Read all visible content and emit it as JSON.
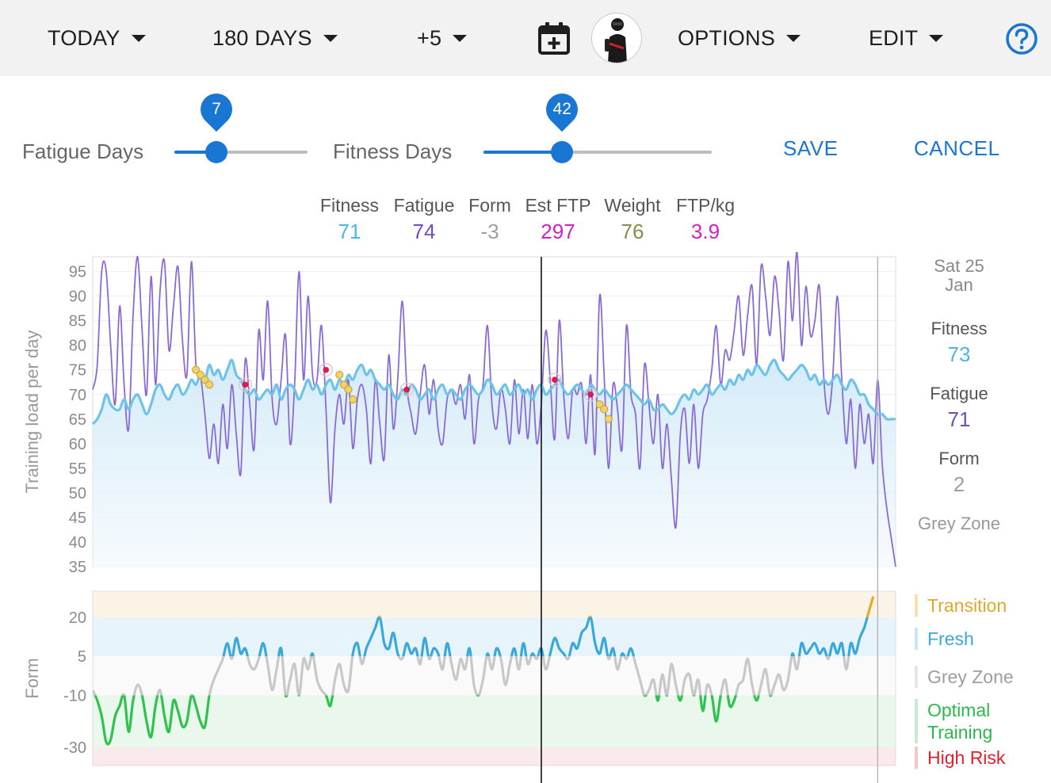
{
  "toolbar": {
    "period": "TODAY",
    "range": "180 DAYS",
    "offset": "+5",
    "calendar_icon": "calendar-add-icon",
    "options": "OPTIONS",
    "edit": "EDIT",
    "help_icon": "help-circle-icon"
  },
  "sliders": {
    "fatigue": {
      "label": "Fatigue Days",
      "value": 7,
      "value_text": "7",
      "min": 1,
      "max": 20
    },
    "fitness": {
      "label": "Fitness Days",
      "value": 42,
      "value_text": "42",
      "min": 1,
      "max": 120
    }
  },
  "actions": {
    "save": "SAVE",
    "cancel": "CANCEL"
  },
  "summary": [
    {
      "label": "Fitness",
      "value": "71",
      "color": "#4db6e6"
    },
    {
      "label": "Fatigue",
      "value": "74",
      "color": "#6f4cc3"
    },
    {
      "label": "Form",
      "value": "-3",
      "color": "#9e9e9e"
    },
    {
      "label": "Est FTP",
      "value": "297",
      "color": "#d021c7"
    },
    {
      "label": "Weight",
      "value": "76",
      "color": "#8a8a4a"
    },
    {
      "label": "FTP/kg",
      "value": "3.9",
      "color": "#d021c7"
    }
  ],
  "side": {
    "date_line1": "Sat 25",
    "date_line2": "Jan",
    "fitness_label": "Fitness",
    "fitness_value": "73",
    "fatigue_label": "Fatigue",
    "fatigue_value": "71",
    "form_label": "Form",
    "form_value": "2",
    "zone_label": "Grey Zone"
  },
  "zones": [
    {
      "label": "Transition",
      "color": "#e0a82e",
      "bar": "#f7dfb0"
    },
    {
      "label": "Fresh",
      "color": "#3aa8dc",
      "bar": "#c8e6f6"
    },
    {
      "label": "Grey Zone",
      "color": "#9e9e9e",
      "bar": "#e6e6e6"
    },
    {
      "label": "Optimal\nTraining",
      "color": "#2db84d",
      "bar": "#c8eccf"
    },
    {
      "label": "High Risk",
      "color": "#e0202a",
      "bar": "#f6c6c8"
    }
  ],
  "chart_data": {
    "type": "line",
    "days": 180,
    "load_chart": {
      "ylabel": "Training load per day",
      "yticks": [
        35,
        40,
        45,
        50,
        55,
        60,
        65,
        70,
        75,
        80,
        85,
        90,
        95
      ],
      "ylim": [
        35,
        98
      ],
      "series": [
        {
          "name": "Fitness",
          "color": "#6ec3e8",
          "fill": true,
          "values": [
            64,
            65,
            67,
            70,
            68,
            67,
            67,
            69,
            67,
            69,
            70,
            68,
            66,
            68,
            71,
            72,
            70,
            69,
            71,
            72,
            70,
            71,
            73,
            72,
            74,
            73,
            76,
            74,
            75,
            73,
            75,
            77,
            74,
            73,
            71,
            70,
            71,
            69,
            70,
            71,
            70,
            72,
            69,
            71,
            72,
            71,
            69,
            71,
            73,
            71,
            72,
            70,
            72,
            73,
            71,
            73,
            72,
            74,
            73,
            75,
            76,
            74,
            75,
            73,
            72,
            71,
            72,
            70,
            69,
            71,
            70,
            72,
            71,
            69,
            70,
            71,
            69,
            71,
            72,
            70,
            71,
            70,
            69,
            71,
            72,
            71,
            70,
            71,
            73,
            72,
            70,
            71,
            72,
            70,
            71,
            72,
            70,
            71,
            69,
            71,
            72,
            70,
            71,
            72,
            73,
            71,
            70,
            71,
            72,
            71,
            70,
            72,
            71,
            70,
            71,
            70,
            69,
            70,
            71,
            72,
            71,
            70,
            69,
            68,
            69,
            67,
            67,
            68,
            67,
            66,
            67,
            69,
            70,
            69,
            71,
            70,
            71,
            72,
            70,
            71,
            72,
            71,
            73,
            72,
            74,
            73,
            75,
            74,
            76,
            75,
            74,
            76,
            77,
            75,
            74,
            73,
            74,
            75,
            76,
            75,
            73,
            74,
            72,
            73,
            72,
            73,
            74,
            72,
            71,
            73,
            72,
            70,
            70,
            68,
            67,
            66,
            66,
            65,
            65,
            65
          ]
        },
        {
          "name": "Fatigue",
          "color": "#8a6bd6",
          "values": [
            71,
            76,
            95,
            95,
            80,
            68,
            88,
            72,
            63,
            86,
            98,
            83,
            70,
            94,
            72,
            91,
            97,
            79,
            88,
            96,
            81,
            74,
            97,
            76,
            74,
            66,
            57,
            64,
            56,
            68,
            59,
            72,
            62,
            54,
            77,
            68,
            59,
            83,
            73,
            89,
            69,
            64,
            73,
            82,
            60,
            72,
            95,
            73,
            90,
            74,
            73,
            84,
            67,
            48,
            63,
            70,
            64,
            73,
            59,
            69,
            72,
            67,
            56,
            73,
            64,
            57,
            78,
            63,
            73,
            89,
            72,
            66,
            62,
            70,
            76,
            66,
            73,
            63,
            60,
            69,
            71,
            68,
            72,
            65,
            74,
            60,
            69,
            72,
            84,
            68,
            63,
            71,
            67,
            60,
            73,
            62,
            71,
            61,
            72,
            60,
            68,
            83,
            73,
            61,
            85,
            70,
            61,
            71,
            70,
            72,
            60,
            74,
            58,
            90,
            74,
            55,
            72,
            67,
            59,
            84,
            70,
            66,
            55,
            76,
            68,
            60,
            70,
            55,
            64,
            53,
            43,
            62,
            67,
            56,
            68,
            55,
            66,
            69,
            75,
            84,
            72,
            79,
            77,
            83,
            90,
            78,
            86,
            92,
            76,
            96,
            90,
            82,
            94,
            87,
            77,
            97,
            85,
            99,
            80,
            92,
            82,
            85,
            92,
            73,
            66,
            74,
            90,
            73,
            60,
            69,
            55,
            68,
            60,
            66,
            56,
            73,
            56,
            47,
            41,
            35
          ]
        }
      ],
      "markers": {
        "red_dots": [
          {
            "x": 34,
            "y": 72
          },
          {
            "x": 52,
            "y": 75
          },
          {
            "x": 70,
            "y": 71
          },
          {
            "x": 103,
            "y": 73
          },
          {
            "x": 111,
            "y": 70
          }
        ],
        "yellow_dots": [
          {
            "x": 23,
            "y": 75
          },
          {
            "x": 24,
            "y": 74
          },
          {
            "x": 25,
            "y": 73
          },
          {
            "x": 26,
            "y": 72
          },
          {
            "x": 55,
            "y": 74
          },
          {
            "x": 56,
            "y": 72
          },
          {
            "x": 57,
            "y": 71
          },
          {
            "x": 58,
            "y": 69
          },
          {
            "x": 113,
            "y": 68
          },
          {
            "x": 114,
            "y": 67
          },
          {
            "x": 115,
            "y": 65
          }
        ]
      }
    },
    "form_chart": {
      "ylabel": "Form",
      "yticks": [
        -30,
        -10,
        5,
        20
      ],
      "ylim": [
        -37,
        30
      ],
      "zone_bands": [
        {
          "from": 20,
          "to": 30,
          "color": "#fbf4e6"
        },
        {
          "from": 5,
          "to": 20,
          "color": "#e8f4fb"
        },
        {
          "from": -10,
          "to": 5,
          "color": "#fafafa"
        },
        {
          "from": -30,
          "to": -10,
          "color": "#eaf7ec"
        },
        {
          "from": -37,
          "to": -30,
          "color": "#fbeaec"
        }
      ],
      "values": [
        -8,
        -12,
        -18,
        -28,
        -27,
        -18,
        -14,
        -10,
        -24,
        -12,
        -6,
        -10,
        -20,
        -26,
        -14,
        -8,
        -18,
        -24,
        -12,
        -16,
        -22,
        -20,
        -10,
        -14,
        -20,
        -22,
        -10,
        -4,
        0,
        4,
        10,
        4,
        12,
        6,
        8,
        2,
        0,
        4,
        10,
        2,
        -8,
        0,
        8,
        -10,
        -4,
        2,
        -10,
        4,
        0,
        6,
        -4,
        -8,
        -10,
        -14,
        -4,
        2,
        -6,
        -8,
        6,
        10,
        2,
        8,
        12,
        16,
        20,
        10,
        8,
        14,
        6,
        4,
        10,
        6,
        8,
        2,
        12,
        4,
        8,
        6,
        0,
        10,
        2,
        -4,
        4,
        0,
        8,
        -6,
        -10,
        -4,
        6,
        0,
        8,
        4,
        -6,
        2,
        8,
        0,
        10,
        2,
        6,
        4,
        8,
        0,
        6,
        12,
        8,
        6,
        4,
        10,
        8,
        14,
        16,
        20,
        10,
        6,
        12,
        4,
        8,
        0,
        6,
        4,
        8,
        2,
        -4,
        -10,
        -8,
        -4,
        -12,
        -2,
        -10,
        2,
        -6,
        -12,
        -4,
        -2,
        -10,
        -4,
        -16,
        -6,
        -10,
        -20,
        -10,
        -4,
        -14,
        -12,
        -6,
        -4,
        4,
        -6,
        -12,
        -6,
        0,
        -10,
        -6,
        -2,
        -8,
        -4,
        6,
        0,
        10,
        6,
        8,
        10,
        6,
        8,
        4,
        10,
        6,
        10,
        0,
        10,
        6,
        12,
        16,
        22,
        28
      ]
    },
    "vertical_markers": [
      {
        "x": 100,
        "color": "#111111"
      },
      {
        "x": 175,
        "color": "#aaaaaa"
      }
    ]
  }
}
